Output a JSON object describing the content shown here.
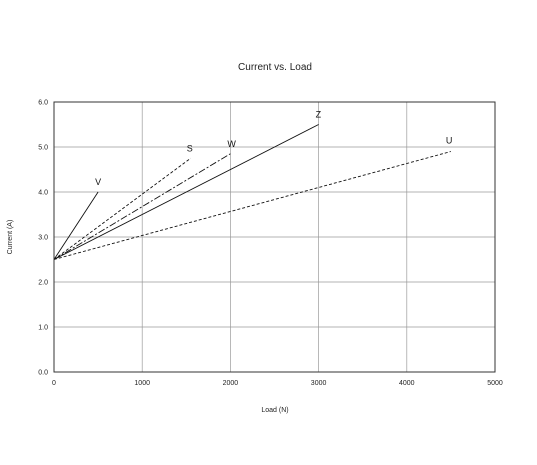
{
  "chart_data": {
    "type": "line",
    "title": "Current vs. Load",
    "xlabel": "Load (N)",
    "ylabel": "Current (A)",
    "xlim": [
      0,
      5000
    ],
    "ylim": [
      0,
      6
    ],
    "x_ticks": [
      0,
      1000,
      2000,
      3000,
      4000,
      5000
    ],
    "y_ticks": [
      "0.0",
      "1.0",
      "2.0",
      "3.0",
      "4.0",
      "5.0",
      "6.0"
    ],
    "grid": true,
    "legend": "none",
    "series": [
      {
        "name": "V",
        "style": "solid",
        "points": [
          [
            0,
            2.5
          ],
          [
            500,
            4.0
          ]
        ]
      },
      {
        "name": "S",
        "style": "dashed",
        "points": [
          [
            0,
            2.5
          ],
          [
            1550,
            4.75
          ]
        ]
      },
      {
        "name": "W",
        "style": "dashdot",
        "points": [
          [
            0,
            2.5
          ],
          [
            2000,
            4.85
          ]
        ]
      },
      {
        "name": "Z",
        "style": "solid",
        "points": [
          [
            0,
            2.5
          ],
          [
            3000,
            5.5
          ]
        ]
      },
      {
        "name": "U",
        "style": "dashed",
        "points": [
          [
            0,
            2.5
          ],
          [
            4500,
            4.9
          ]
        ]
      }
    ]
  }
}
